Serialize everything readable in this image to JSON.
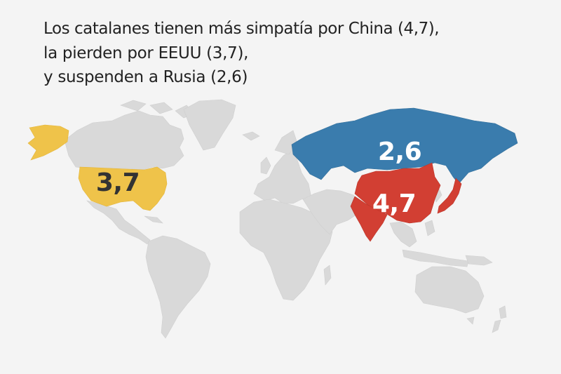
{
  "headline": {
    "line1": "Los catalanes tienen más simpatía por China (4,7),",
    "line2": "la pierden por EEUU (3,7),",
    "line3": "y suspenden a Rusia (2,6)"
  },
  "map": {
    "highlighted_countries": [
      {
        "id": "usa",
        "name": "EEUU",
        "value": "3,7",
        "color": "#efc34a",
        "label_color": "#333333"
      },
      {
        "id": "russia",
        "name": "Rusia",
        "value": "2,6",
        "color": "#3a7cad",
        "label_color": "#ffffff"
      },
      {
        "id": "china",
        "name": "China",
        "value": "4,7",
        "color": "#d23f33",
        "label_color": "#ffffff"
      }
    ],
    "base_land_color": "#d9d9d9",
    "background_color": "#f4f4f4"
  }
}
